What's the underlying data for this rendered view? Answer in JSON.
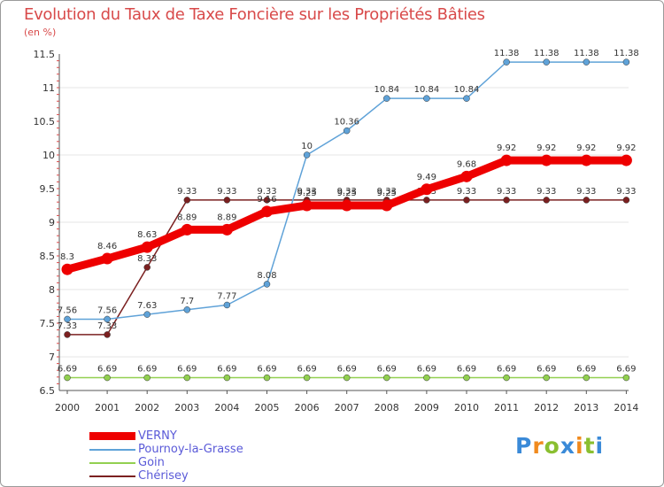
{
  "title": "Evolution du Taux de Taxe Foncière sur les Propriétés Bâties",
  "unit": "(en %)",
  "logo": {
    "text": "Proxiti",
    "colors": [
      "#3a8ad8",
      "#f08a1e",
      "#8abf30"
    ]
  },
  "chart_data": {
    "type": "line",
    "title": "Evolution du Taux de Taxe Foncière sur les Propriétés Bâties",
    "ylabel": "(en %)",
    "xlabel": "",
    "ylim": [
      6.5,
      11.5
    ],
    "yticks": [
      "6.5",
      "7",
      "7.5",
      "8",
      "8.5",
      "9",
      "9.5",
      "10",
      "10.5",
      "11",
      "11.5"
    ],
    "categories": [
      "2000",
      "2001",
      "2002",
      "2003",
      "2004",
      "2005",
      "2006",
      "2007",
      "2008",
      "2009",
      "2010",
      "2011",
      "2012",
      "2013",
      "2014"
    ],
    "legend_position": "bottom-left",
    "series": [
      {
        "name": "Goin",
        "color": "#92d050",
        "values": [
          6.69,
          6.69,
          6.69,
          6.69,
          6.69,
          6.69,
          6.69,
          6.69,
          6.69,
          6.69,
          6.69,
          6.69,
          6.69,
          6.69,
          6.69
        ]
      },
      {
        "name": "Chérisey",
        "color": "#7b2020",
        "values": [
          7.33,
          7.33,
          8.33,
          9.33,
          9.33,
          9.33,
          9.33,
          9.33,
          9.33,
          9.33,
          9.33,
          9.33,
          9.33,
          9.33,
          9.33
        ]
      },
      {
        "name": "Pournoy-la-Grasse",
        "color": "#5fa2d8",
        "values": [
          7.56,
          7.56,
          7.63,
          7.7,
          7.77,
          8.08,
          10,
          10.36,
          10.84,
          10.84,
          10.84,
          11.38,
          11.38,
          11.38,
          11.38
        ]
      },
      {
        "name": "VERNY",
        "color": "#ee0000",
        "values": [
          8.3,
          8.46,
          8.63,
          8.89,
          8.89,
          9.16,
          9.25,
          9.25,
          9.25,
          9.49,
          9.68,
          9.92,
          9.92,
          9.92,
          9.92
        ]
      }
    ],
    "legend_order": [
      "VERNY",
      "Pournoy-la-Grasse",
      "Goin",
      "Chérisey"
    ]
  }
}
